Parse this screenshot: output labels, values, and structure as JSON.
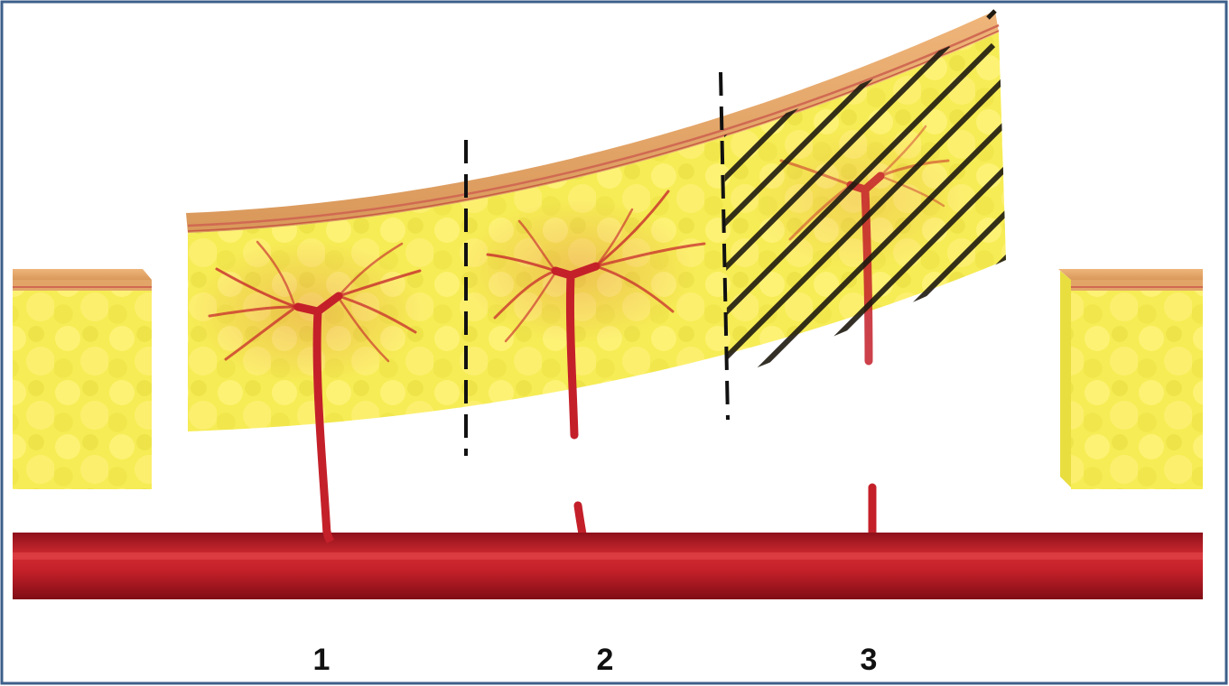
{
  "colors": {
    "frame_border": "#3d5f8a",
    "fat_light": "#fff78a",
    "fat_mid": "#f4ea4c",
    "skin": "#e2a467",
    "skin_line": "#d06a52",
    "vessel": "#c4202a",
    "vessel_dark": "#9c1620",
    "hatch": "#1f1a10"
  },
  "diagram": {
    "labels": [
      {
        "text": "1",
        "zone": "perfused-zone-1"
      },
      {
        "text": "2",
        "zone": "perfused-zone-2"
      },
      {
        "text": "3",
        "zone": "hatched-zone-3"
      }
    ]
  }
}
